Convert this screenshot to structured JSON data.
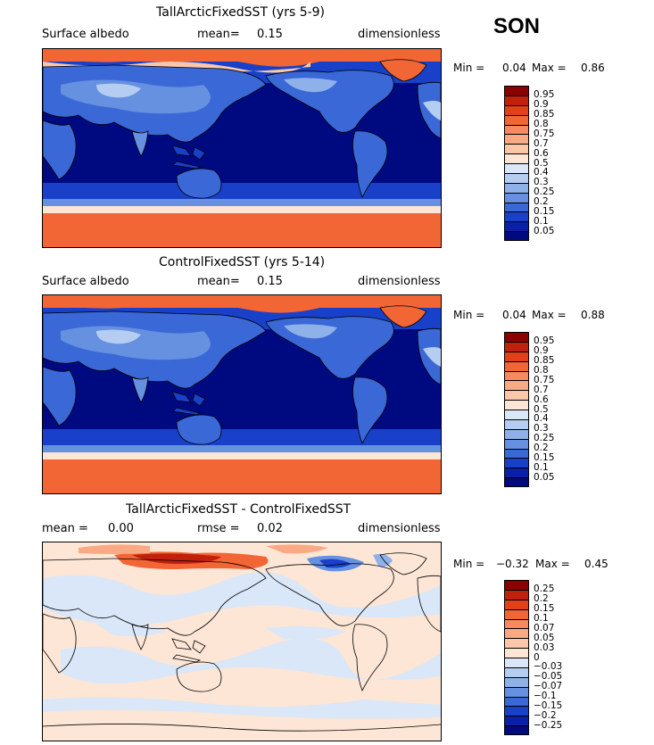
{
  "season": "SON",
  "panels": [
    {
      "title": "TallArcticFixedSST (yrs 5-9)",
      "left": "Surface albedo",
      "mid_label": "mean=",
      "mid_value": "0.15",
      "mid2_label": "",
      "mid2_value": "",
      "right": "dimensionless",
      "min_label": "Min =",
      "min_value": "0.04",
      "max_label": "Max =",
      "max_value": "0.86",
      "kind": "albedo"
    },
    {
      "title": "ControlFixedSST (yrs 5-14)",
      "left": "Surface albedo",
      "mid_label": "mean=",
      "mid_value": "0.15",
      "mid2_label": "",
      "mid2_value": "",
      "right": "dimensionless",
      "min_label": "Min =",
      "min_value": "0.04",
      "max_label": "Max =",
      "max_value": "0.88",
      "kind": "albedo"
    },
    {
      "title": "TallArcticFixedSST - ControlFixedSST",
      "left": "",
      "mid_label": "mean =",
      "mid_value": "0.00",
      "mid2_label": "rmse =",
      "mid2_value": "0.02",
      "right": "dimensionless",
      "min_label": "Min =",
      "min_value": "−0.32",
      "max_label": "Max =",
      "max_value": "0.45",
      "kind": "diff"
    }
  ],
  "colorbars": {
    "albedo": {
      "labels": [
        "0.95",
        "0.9",
        "0.85",
        "0.8",
        "0.75",
        "0.7",
        "0.6",
        "0.5",
        "0.4",
        "0.3",
        "0.25",
        "0.2",
        "0.15",
        "0.1",
        "0.05"
      ],
      "colors": [
        "#8b0000",
        "#c0200c",
        "#e2401a",
        "#f26535",
        "#f6895d",
        "#f9a984",
        "#fbc7a8",
        "#fde6d6",
        "#d9e7f8",
        "#b6cdf2",
        "#8fb1ea",
        "#6690e0",
        "#3a68d6",
        "#1840c8",
        "#0a1fa8",
        "#000a80"
      ]
    },
    "diff": {
      "labels": [
        "0.25",
        "0.2",
        "0.15",
        "0.1",
        "0.07",
        "0.05",
        "0.03",
        "0",
        "−0.03",
        "−0.05",
        "−0.07",
        "−0.1",
        "−0.15",
        "−0.2",
        "−0.25"
      ],
      "colors": [
        "#8b0000",
        "#c0200c",
        "#e2401a",
        "#f26535",
        "#f6895d",
        "#f9a984",
        "#fbc7a8",
        "#fde6d6",
        "#d9e7f8",
        "#b6cdf2",
        "#8fb1ea",
        "#6690e0",
        "#3a68d6",
        "#1840c8",
        "#0a1fa8",
        "#000a80"
      ]
    }
  },
  "chart_data": [
    {
      "type": "heatmap",
      "title": "TallArcticFixedSST (yrs 5-9)",
      "variable": "Surface albedo",
      "units": "dimensionless",
      "mean": 0.15,
      "min": 0.04,
      "max": 0.86,
      "levels": [
        0.05,
        0.1,
        0.15,
        0.2,
        0.25,
        0.3,
        0.4,
        0.5,
        0.6,
        0.7,
        0.75,
        0.8,
        0.85,
        0.9,
        0.95
      ]
    },
    {
      "type": "heatmap",
      "title": "ControlFixedSST (yrs 5-14)",
      "variable": "Surface albedo",
      "units": "dimensionless",
      "mean": 0.15,
      "min": 0.04,
      "max": 0.88,
      "levels": [
        0.05,
        0.1,
        0.15,
        0.2,
        0.25,
        0.3,
        0.4,
        0.5,
        0.6,
        0.7,
        0.75,
        0.8,
        0.85,
        0.9,
        0.95
      ]
    },
    {
      "type": "heatmap",
      "title": "TallArcticFixedSST - ControlFixedSST",
      "units": "dimensionless",
      "mean": 0.0,
      "rmse": 0.02,
      "min": -0.32,
      "max": 0.45,
      "levels": [
        -0.25,
        -0.2,
        -0.15,
        -0.1,
        -0.07,
        -0.05,
        -0.03,
        0,
        0.03,
        0.05,
        0.07,
        0.1,
        0.15,
        0.2,
        0.25
      ]
    }
  ]
}
